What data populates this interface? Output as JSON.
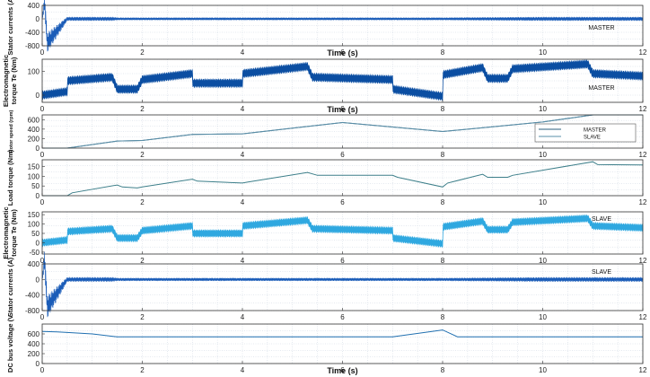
{
  "chart_data": [
    {
      "type": "line",
      "panel_id": "p1",
      "ylabel": "Stator currents (A)",
      "xlabel": "Time (s)",
      "xlim": [
        0,
        12
      ],
      "ylim": [
        -800,
        400
      ],
      "yticks": [
        -800,
        -400,
        0,
        400
      ],
      "xticks": [
        0,
        2,
        4,
        6,
        8,
        10,
        12
      ],
      "grid": true,
      "annotation": "MASTER",
      "color": "#1a5cb8",
      "render": "oscillating_band",
      "series": [
        {
          "x": [
            0,
            0.05,
            0.1,
            0.5,
            1.4,
            1.5,
            3.0,
            5.0,
            7.0,
            8.0,
            10.0,
            12.0
          ],
          "center": [
            0,
            500,
            -700,
            0,
            0,
            0,
            0,
            0,
            0,
            0,
            0,
            0
          ],
          "amplitude": [
            0,
            300,
            300,
            60,
            60,
            40,
            40,
            40,
            40,
            40,
            60,
            60
          ]
        }
      ]
    },
    {
      "type": "line",
      "panel_id": "p2",
      "ylabel": "Electromagnetic torque Te (Nm)",
      "xlabel": "Time (s)",
      "xlim": [
        0,
        12
      ],
      "ylim": [
        -30,
        150
      ],
      "yticks": [
        0,
        100
      ],
      "xticks": [
        0,
        2,
        4,
        6,
        8,
        10,
        12
      ],
      "grid": true,
      "annotation": "MASTER",
      "color": "#0b4ea2",
      "render": "band",
      "series": [
        {
          "x": [
            0,
            0.5,
            0.5,
            1.4,
            1.5,
            1.9,
            2.0,
            3.0,
            3.0,
            4.0,
            4.0,
            5.3,
            5.4,
            7.0,
            7.0,
            8.0,
            8.0,
            8.8,
            8.9,
            9.3,
            9.4,
            10.9,
            11.0,
            12.0
          ],
          "values": [
            0,
            15,
            60,
            75,
            25,
            25,
            65,
            90,
            50,
            50,
            90,
            120,
            75,
            65,
            25,
            -5,
            85,
            115,
            70,
            70,
            110,
            130,
            90,
            80
          ],
          "amplitude": 18
        }
      ]
    },
    {
      "type": "line",
      "panel_id": "p3",
      "ylabel": "Rotor speed (rpm)",
      "xlabel": "",
      "xlim": [
        0,
        12
      ],
      "ylim": [
        0,
        700
      ],
      "yticks": [
        0,
        200,
        400,
        600
      ],
      "xticks": [
        0,
        2,
        4,
        6,
        8,
        10,
        12
      ],
      "grid": true,
      "legend": {
        "position": "right",
        "entries": [
          "MASTER",
          "SLAVE"
        ]
      },
      "render": "line",
      "series": [
        {
          "name": "MASTER",
          "color": "#2b5f7e",
          "x": [
            0,
            0.5,
            1.5,
            2.0,
            3.0,
            4.0,
            5.0,
            6.0,
            8.0,
            9.0,
            10.0,
            11.0,
            12.0
          ],
          "values": [
            0,
            0,
            150,
            160,
            290,
            300,
            420,
            540,
            350,
            450,
            550,
            700,
            700
          ]
        },
        {
          "name": "SLAVE",
          "color": "#5a8fa8",
          "x": [
            0,
            0.5,
            1.5,
            2.0,
            3.0,
            4.0,
            5.0,
            6.0,
            8.0,
            9.0,
            10.0,
            11.0,
            12.0
          ],
          "values": [
            0,
            0,
            150,
            160,
            290,
            300,
            420,
            540,
            350,
            450,
            550,
            700,
            700
          ]
        }
      ]
    },
    {
      "type": "line",
      "panel_id": "p4",
      "ylabel": "Load torque (Nm)",
      "xlabel": "",
      "xlim": [
        0,
        12
      ],
      "ylim": [
        0,
        185
      ],
      "yticks": [
        0,
        50,
        100,
        150
      ],
      "xticks": [
        0,
        2,
        4,
        6,
        8,
        10,
        12
      ],
      "grid": true,
      "color": "#3d7f8a",
      "render": "line",
      "series": [
        {
          "x": [
            0,
            0.5,
            0.6,
            1.5,
            1.6,
            1.9,
            2.0,
            3.0,
            3.1,
            4.0,
            4.1,
            5.3,
            5.5,
            7.0,
            7.1,
            8.0,
            8.1,
            8.8,
            8.9,
            9.3,
            9.4,
            11.0,
            11.1,
            12.0
          ],
          "values": [
            0,
            0,
            15,
            55,
            45,
            40,
            45,
            85,
            75,
            65,
            70,
            120,
            105,
            105,
            95,
            45,
            65,
            110,
            95,
            95,
            105,
            175,
            160,
            158
          ]
        }
      ]
    },
    {
      "type": "line",
      "panel_id": "p5",
      "ylabel": "Electromagnetic torque Te (Nm)",
      "xlabel": "",
      "xlim": [
        0,
        12
      ],
      "ylim": [
        -60,
        165
      ],
      "yticks": [
        -50,
        0,
        50,
        100,
        150
      ],
      "xticks": [
        0,
        2,
        4,
        6,
        8,
        10,
        12
      ],
      "grid": true,
      "annotation": "SLAVE",
      "color": "#2fa8e0",
      "render": "band",
      "series": [
        {
          "x": [
            0,
            0.5,
            0.5,
            1.4,
            1.5,
            1.9,
            2.0,
            3.0,
            3.0,
            4.0,
            4.0,
            5.3,
            5.4,
            7.0,
            7.0,
            8.0,
            8.0,
            8.8,
            8.9,
            9.3,
            9.4,
            10.9,
            11.0,
            12.0
          ],
          "values": [
            0,
            15,
            60,
            75,
            25,
            25,
            65,
            90,
            50,
            50,
            90,
            120,
            75,
            65,
            25,
            -5,
            85,
            115,
            70,
            70,
            110,
            130,
            90,
            80
          ],
          "amplitude": 20
        }
      ]
    },
    {
      "type": "line",
      "panel_id": "p6",
      "ylabel": "Stator currents (A)",
      "xlabel": "",
      "xlim": [
        0,
        12
      ],
      "ylim": [
        -800,
        400
      ],
      "yticks": [
        -800,
        -400,
        0,
        400
      ],
      "xticks": [
        0,
        2,
        4,
        6,
        8,
        10,
        12
      ],
      "grid": true,
      "annotation": "SLAVE",
      "color": "#1a5cb8",
      "render": "oscillating_band",
      "series": [
        {
          "x": [
            0,
            0.05,
            0.1,
            0.5,
            1.4,
            1.5,
            3.0,
            5.0,
            7.0,
            8.0,
            10.0,
            12.0
          ],
          "center": [
            0,
            500,
            -700,
            0,
            0,
            0,
            0,
            0,
            0,
            0,
            0,
            0
          ],
          "amplitude": [
            0,
            300,
            300,
            60,
            60,
            40,
            40,
            40,
            40,
            40,
            60,
            60
          ]
        }
      ]
    },
    {
      "type": "line",
      "panel_id": "p7",
      "ylabel": "DC bus voltage (V",
      "xlabel": "Time (s)",
      "xlim": [
        0,
        12
      ],
      "ylim": [
        0,
        800
      ],
      "yticks": [
        0,
        200,
        400,
        600
      ],
      "xticks": [
        0,
        2,
        4,
        6,
        8,
        10,
        12
      ],
      "grid": true,
      "color": "#1f6fb0",
      "render": "line",
      "series": [
        {
          "x": [
            0,
            0.3,
            0.5,
            1.0,
            1.5,
            2.0,
            4.0,
            6.0,
            7.0,
            8.0,
            8.3,
            10.0,
            12.0
          ],
          "values": [
            650,
            640,
            630,
            600,
            540,
            540,
            540,
            540,
            540,
            680,
            540,
            540,
            540
          ]
        }
      ]
    }
  ]
}
